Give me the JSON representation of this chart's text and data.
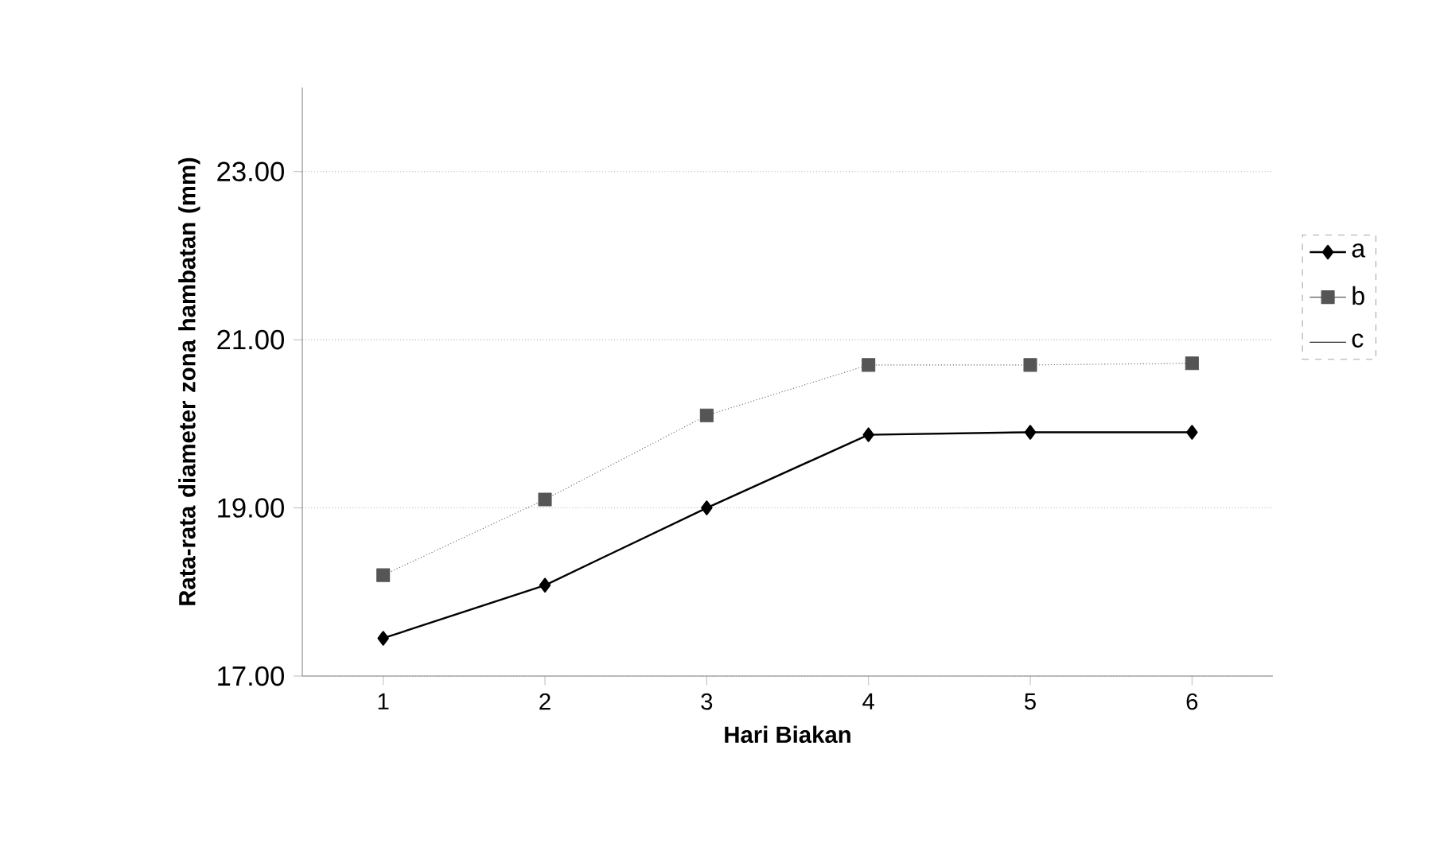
{
  "chart_data": {
    "type": "line",
    "xlabel": "Hari Biakan",
    "ylabel": "Rata-rata diameter zona hambatan (mm)",
    "categories": [
      "1",
      "2",
      "3",
      "4",
      "5",
      "6"
    ],
    "series": [
      {
        "name": "a",
        "color": "#000000",
        "marker": "diamond",
        "line_style": "solid",
        "values": [
          17.45,
          18.08,
          19.0,
          19.87,
          19.9,
          19.9
        ]
      },
      {
        "name": "b",
        "color": "#555555",
        "marker": "square",
        "line_style": "dotted",
        "values": [
          18.2,
          19.1,
          20.1,
          20.7,
          20.7,
          20.72
        ]
      },
      {
        "name": "c",
        "values": [
          null,
          null,
          null,
          null,
          null,
          null
        ]
      }
    ],
    "ylim": [
      17,
      24
    ],
    "yticks": [
      {
        "value": 17,
        "label": "17.00"
      },
      {
        "value": 19,
        "label": "19.00"
      },
      {
        "value": 21,
        "label": "21.00"
      },
      {
        "value": 23,
        "label": "23.00"
      }
    ],
    "grid": "y",
    "legend": "right"
  }
}
